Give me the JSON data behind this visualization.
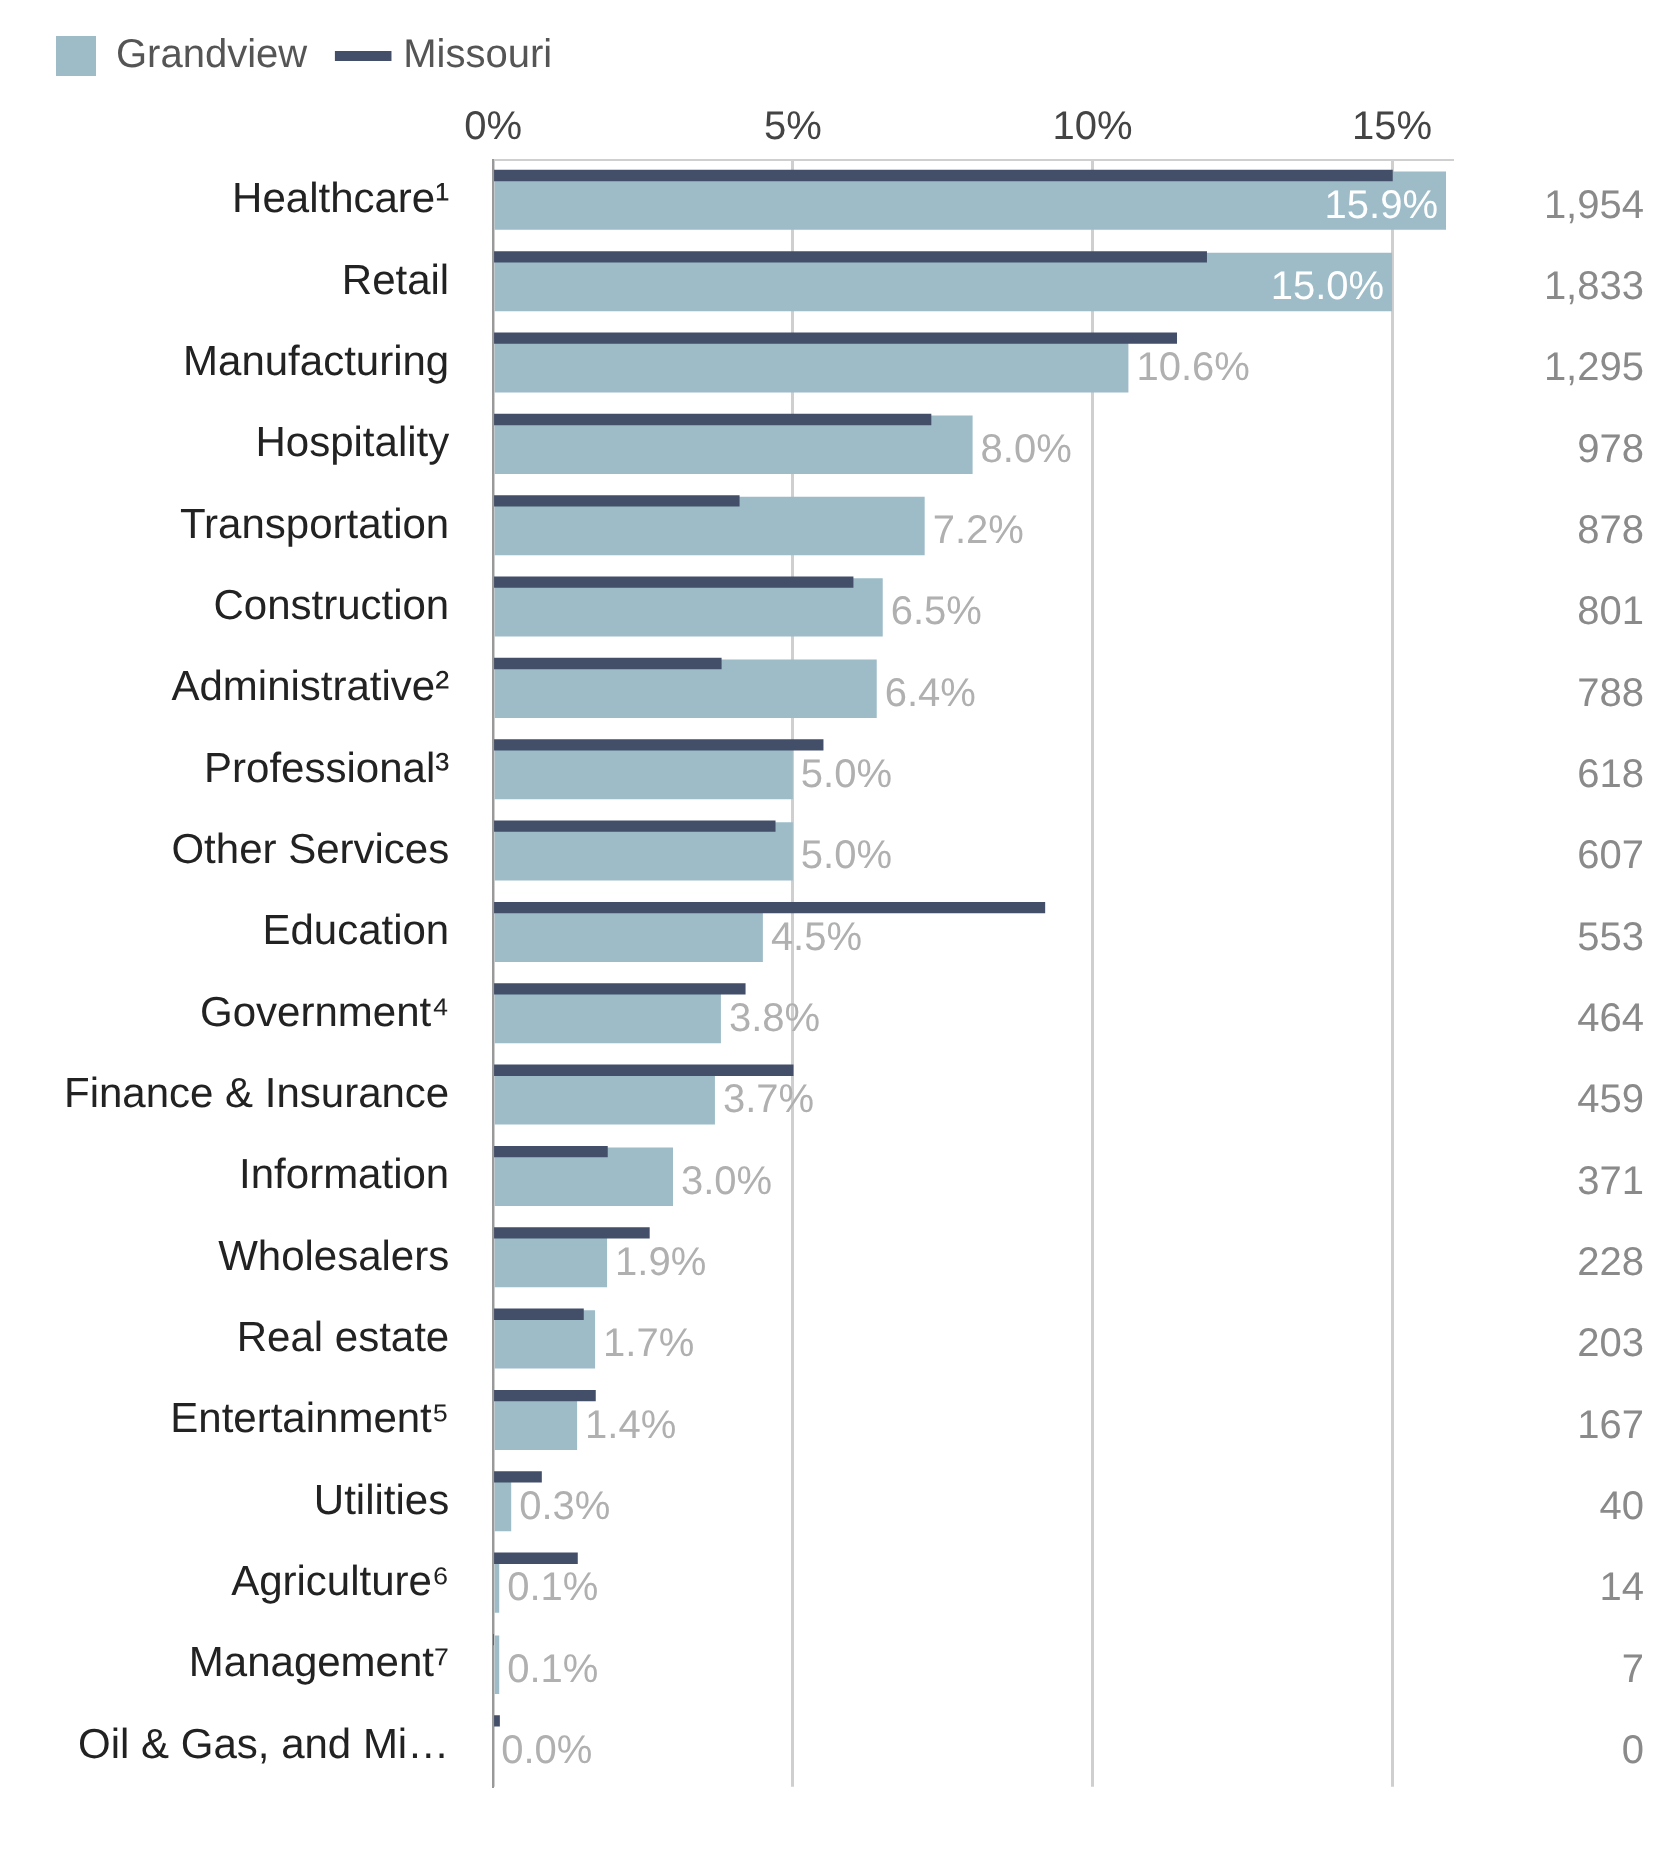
{
  "chart_data": {
    "type": "bar",
    "orientation": "horizontal",
    "legend": "top left",
    "grid": "x",
    "categories": [
      "Healthcare¹",
      "Retail",
      "Manufacturing",
      "Hospitality",
      "Transportation",
      "Construction",
      "Administrative²",
      "Professional³",
      "Other Services",
      "Education",
      "Government⁴",
      "Finance & Insurance",
      "Information",
      "Wholesalers",
      "Real estate",
      "Entertainment⁵",
      "Utilities",
      "Agriculture⁶",
      "Management⁷",
      "Oil & Gas, and Mi…"
    ],
    "xlim": [
      0,
      16
    ],
    "xticks": [
      {
        "value": 0,
        "label": "0%"
      },
      {
        "value": 5,
        "label": "5%"
      },
      {
        "value": 10,
        "label": "10%"
      },
      {
        "value": 15,
        "label": "15%"
      }
    ],
    "series": [
      {
        "name": "Grandview",
        "color": "#9dbcc8",
        "values": [
          15.9,
          15.0,
          10.6,
          8.0,
          7.2,
          6.5,
          6.4,
          5.0,
          5.0,
          4.5,
          3.8,
          3.7,
          3.0,
          1.9,
          1.7,
          1.4,
          0.3,
          0.1,
          0.1,
          0.0
        ],
        "value_labels": [
          "15.9%",
          "15.0%",
          "10.6%",
          "8.0%",
          "7.2%",
          "6.5%",
          "6.4%",
          "5.0%",
          "5.0%",
          "4.5%",
          "3.8%",
          "3.7%",
          "3.0%",
          "1.9%",
          "1.7%",
          "1.4%",
          "0.3%",
          "0.1%",
          "0.1%",
          "0.0%"
        ]
      },
      {
        "name": "Missouri",
        "color": "#434f68",
        "values": [
          15.0,
          11.9,
          11.4,
          7.3,
          4.1,
          6.0,
          3.8,
          5.5,
          4.7,
          9.2,
          4.2,
          5.0,
          1.9,
          2.6,
          1.5,
          1.7,
          0.8,
          1.4,
          0,
          0.1
        ]
      }
    ],
    "annotations": [
      "1,954",
      "1,833",
      "1,295",
      "978",
      "878",
      "801",
      "788",
      "618",
      "607",
      "553",
      "464",
      "459",
      "371",
      "228",
      "203",
      "167",
      "40",
      "14",
      "7",
      "0"
    ]
  }
}
